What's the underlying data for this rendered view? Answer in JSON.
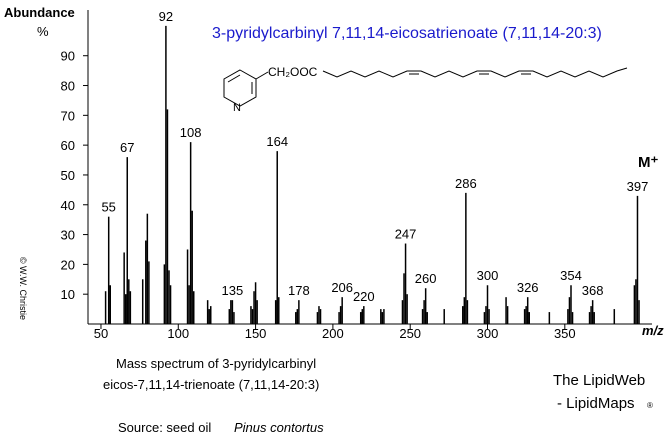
{
  "chart_data": {
    "type": "spectrum",
    "title": "3-pyridylcarbinyl 7,11,14-eicosatrienoate (7,11,14-20:3)",
    "structure": {
      "group": "CH₂OOC",
      "atom": "N"
    },
    "molecular_ion": "M⁺",
    "y_label": "Abundance",
    "y_unit": "%",
    "x_label": "m/z",
    "caption": [
      "Mass spectrum of 3-pyridylcarbinyl",
      "eicos-7,11,14-trienoate (7,11,14-20:3)"
    ],
    "source": {
      "label": "Source:  seed oil",
      "species": "Pinus contortus"
    },
    "credit": [
      "The LipidWeb",
      "- LipidMaps",
      "®"
    ],
    "copyright": "© W.W. Christie",
    "xlim": [
      42,
      406
    ],
    "xticks": [
      50,
      100,
      150,
      200,
      250,
      300,
      350
    ],
    "ylim": [
      0,
      105
    ],
    "yticks": [
      10,
      20,
      30,
      40,
      50,
      60,
      70,
      80,
      90
    ],
    "series": [
      {
        "color": "#000000",
        "show_labels": true,
        "x": [
          55,
          67,
          92,
          108,
          135,
          164,
          178,
          206,
          220,
          247,
          260,
          286,
          300,
          326,
          354,
          368,
          397
        ],
        "values": [
          36,
          56,
          100,
          61,
          8,
          58,
          8,
          9,
          6,
          27,
          12,
          44,
          13,
          9,
          13,
          8,
          43
        ]
      },
      {
        "color": "#000000",
        "show_labels": false,
        "x": [
          53,
          56,
          65,
          66,
          68,
          69,
          77,
          79,
          80,
          81,
          91,
          93,
          94,
          95,
          106,
          107,
          109,
          110,
          119,
          120,
          121,
          133,
          134,
          136,
          147,
          148,
          149,
          150,
          151,
          163,
          165,
          176,
          177,
          190,
          191,
          192,
          204,
          205,
          218,
          219,
          231,
          232,
          233,
          245,
          246,
          248,
          258,
          259,
          261,
          272,
          284,
          285,
          287,
          298,
          299,
          301,
          312,
          313,
          324,
          325,
          327,
          340,
          352,
          353,
          355,
          366,
          367,
          369,
          382,
          395,
          396,
          398
        ],
        "values": [
          11,
          13,
          24,
          10,
          15,
          11,
          15,
          28,
          37,
          21,
          20,
          72,
          18,
          13,
          25,
          13,
          38,
          11,
          8,
          5,
          6,
          5,
          8,
          4,
          6,
          5,
          11,
          14,
          8,
          8,
          9,
          4,
          5,
          4,
          6,
          5,
          4,
          6,
          4,
          5,
          5,
          4,
          5,
          8,
          17,
          10,
          5,
          8,
          4,
          5,
          6,
          9,
          8,
          4,
          6,
          5,
          9,
          6,
          5,
          6,
          4,
          4,
          5,
          9,
          4,
          4,
          6,
          4,
          5,
          13,
          15,
          8
        ]
      }
    ]
  }
}
